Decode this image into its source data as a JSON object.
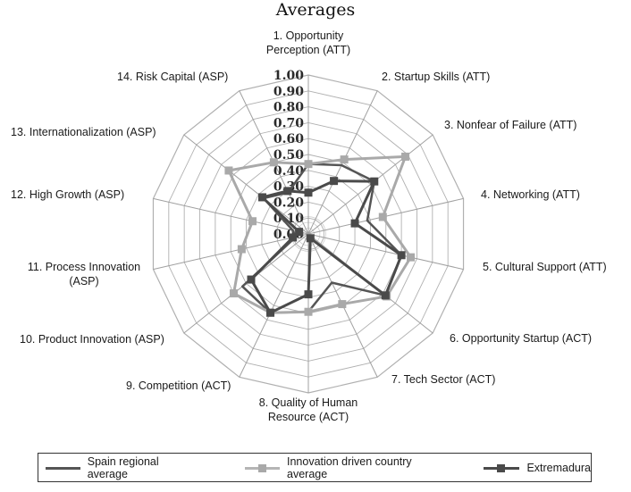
{
  "chart_data": {
    "type": "radar",
    "title": "Averages",
    "range": [
      0,
      1
    ],
    "ticks": [
      "0.00",
      "0.10",
      "0.20",
      "0.30",
      "0.40",
      "0.50",
      "0.60",
      "0.70",
      "0.80",
      "0.90",
      "1.00"
    ],
    "categories": [
      "1. Opportunity\nPerception (ATT)",
      "2. Startup Skills (ATT)",
      "3. Nonfear of Failure (ATT)",
      "4. Networking (ATT)",
      "5. Cultural Support (ATT)",
      "6. Opportunity Startup (ACT)",
      "7. Tech Sector (ACT)",
      "8. Quality of Human\nResource (ACT)",
      "9. Competition (ACT)",
      "10. Product Innovation (ASP)",
      "11. Process Innovation\n(ASP)",
      "12. High Growth (ASP)",
      "13. Internationalization (ASP)",
      "14. Risk Capital (ASP)"
    ],
    "series": [
      {
        "name": "Spain regional average",
        "color": "#555555",
        "marker": false,
        "values": [
          0.44,
          0.48,
          0.53,
          0.38,
          0.6,
          0.62,
          0.34,
          0.49,
          0.55,
          0.53,
          0.08,
          0.1,
          0.36,
          0.29
        ]
      },
      {
        "name": "Innovation driven country average",
        "color": "#a9a9a9",
        "marker": true,
        "values": [
          0.44,
          0.52,
          0.78,
          0.48,
          0.66,
          0.63,
          0.49,
          0.49,
          0.55,
          0.6,
          0.43,
          0.36,
          0.64,
          0.5
        ]
      },
      {
        "name": "Extremadura",
        "color": "#4a4a4a",
        "marker": true,
        "values": [
          0.26,
          0.37,
          0.53,
          0.3,
          0.6,
          0.62,
          0.03,
          0.38,
          0.55,
          0.46,
          0.1,
          0.06,
          0.37,
          0.3
        ]
      }
    ],
    "grid": true,
    "legend_position": "bottom"
  },
  "legend": {
    "items": [
      {
        "label": "Spain regional average"
      },
      {
        "label": "Innovation driven country average"
      },
      {
        "label": "Extremadura"
      }
    ]
  }
}
